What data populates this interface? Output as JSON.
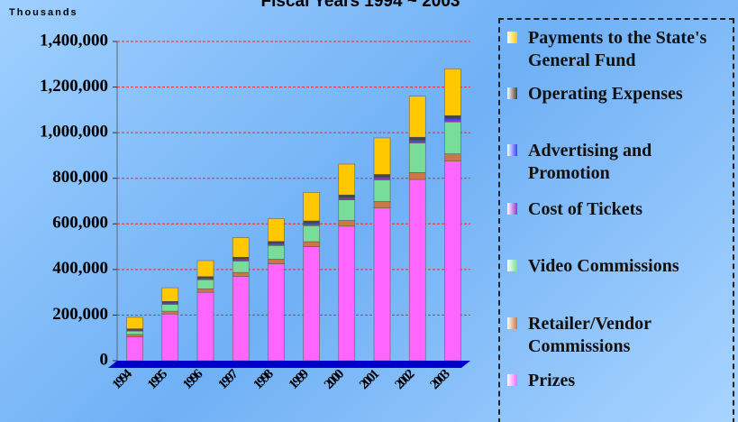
{
  "chart_data": {
    "type": "stacked_bar",
    "title": "Fiscal Years 1994 ~ 2003",
    "y_label": "Thousands",
    "categories": [
      "1994",
      "1995",
      "1996",
      "1997",
      "1998",
      "1999",
      "2000",
      "2001",
      "2002",
      "2003"
    ],
    "series": [
      {
        "name": "Prizes",
        "color": "#ff66ff",
        "values": [
          105000,
          205000,
          300000,
          370000,
          425000,
          500000,
          590000,
          670000,
          795000,
          875000
        ]
      },
      {
        "name": "Retailer/Vendor Commissions",
        "color": "#cc7744",
        "values": [
          10000,
          12000,
          15000,
          17000,
          20000,
          22000,
          25000,
          28000,
          30000,
          32000
        ]
      },
      {
        "name": "Video Commissions",
        "color": "#77dd99",
        "values": [
          15000,
          30000,
          40000,
          50000,
          60000,
          70000,
          90000,
          95000,
          130000,
          140000
        ]
      },
      {
        "name": "Cost of Tickets",
        "color": "#9933cc",
        "values": [
          3000,
          4000,
          4000,
          5000,
          5000,
          6000,
          6000,
          7000,
          7000,
          8000
        ]
      },
      {
        "name": "Advertising and Promotion",
        "color": "#3344ff",
        "values": [
          2000,
          3000,
          3000,
          4000,
          4000,
          5000,
          5000,
          5000,
          6000,
          6000
        ]
      },
      {
        "name": "Operating Expenses",
        "color": "#444444",
        "values": [
          5000,
          6000,
          7000,
          8000,
          9000,
          10000,
          11000,
          12000,
          12000,
          14000
        ]
      },
      {
        "name": "Payments to the State's General Fund",
        "color": "#ffc800",
        "values": [
          50000,
          60000,
          70000,
          85000,
          100000,
          125000,
          135000,
          160000,
          180000,
          205000
        ]
      }
    ],
    "ylim": [
      0,
      1400000
    ],
    "yticks": [
      0,
      {
        "value": 200000,
        "label": "200,000"
      },
      {
        "value": 400000,
        "label": "400,000"
      },
      {
        "value": 600000,
        "label": "600,000"
      },
      {
        "value": 800000,
        "label": "800,000"
      },
      {
        "value": 1000000,
        "label": "1,000,000"
      },
      {
        "value": 1200000,
        "label": "1,200,000"
      },
      {
        "value": 1400000,
        "label": "1,400,000"
      }
    ],
    "grid": true
  }
}
